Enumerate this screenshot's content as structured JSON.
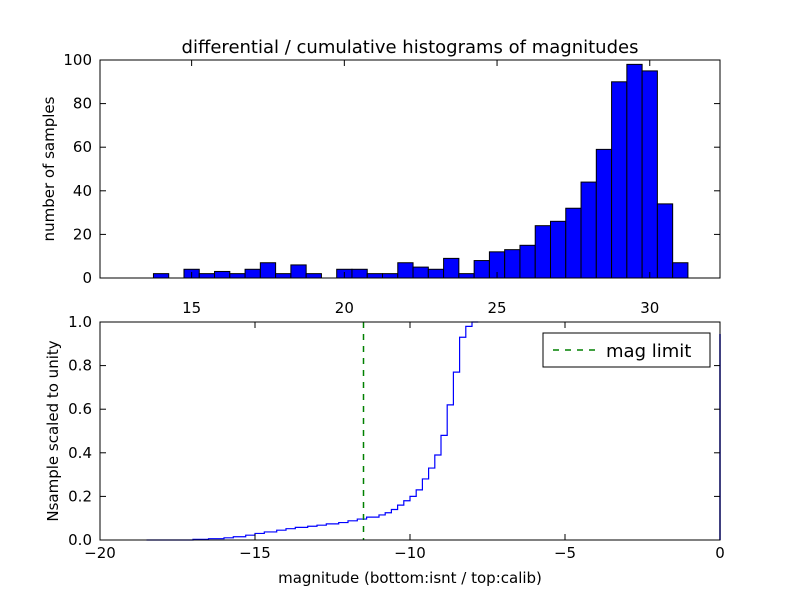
{
  "chart_data": [
    {
      "type": "bar",
      "title": "differential / cumulative histograms of magnitudes",
      "xlabel": "",
      "ylabel": "number of samples",
      "xlim": [
        12.0,
        32.3
      ],
      "ylim": [
        0,
        100
      ],
      "xticks": [
        15,
        20,
        25,
        30
      ],
      "yticks": [
        0,
        20,
        40,
        60,
        80,
        100
      ],
      "bar_color": "#0000ff",
      "edge_color": "#000000",
      "bin_width": 0.5,
      "bins": [
        {
          "left": 13.75,
          "value": 2
        },
        {
          "left": 14.25,
          "value": 0
        },
        {
          "left": 14.75,
          "value": 4
        },
        {
          "left": 15.25,
          "value": 2
        },
        {
          "left": 15.75,
          "value": 3
        },
        {
          "left": 16.25,
          "value": 2
        },
        {
          "left": 16.75,
          "value": 4
        },
        {
          "left": 17.25,
          "value": 7
        },
        {
          "left": 17.75,
          "value": 2
        },
        {
          "left": 18.25,
          "value": 6
        },
        {
          "left": 18.75,
          "value": 2
        },
        {
          "left": 19.25,
          "value": 0
        },
        {
          "left": 19.75,
          "value": 4
        },
        {
          "left": 20.25,
          "value": 4
        },
        {
          "left": 20.75,
          "value": 2
        },
        {
          "left": 21.25,
          "value": 2
        },
        {
          "left": 21.75,
          "value": 7
        },
        {
          "left": 22.25,
          "value": 5
        },
        {
          "left": 22.75,
          "value": 4
        },
        {
          "left": 23.25,
          "value": 9
        },
        {
          "left": 23.75,
          "value": 2
        },
        {
          "left": 24.25,
          "value": 8
        },
        {
          "left": 24.75,
          "value": 12
        },
        {
          "left": 25.25,
          "value": 13
        },
        {
          "left": 25.75,
          "value": 15
        },
        {
          "left": 26.25,
          "value": 24
        },
        {
          "left": 26.75,
          "value": 26
        },
        {
          "left": 27.25,
          "value": 32
        },
        {
          "left": 27.75,
          "value": 44
        },
        {
          "left": 28.25,
          "value": 59
        },
        {
          "left": 28.75,
          "value": 90
        },
        {
          "left": 29.25,
          "value": 98
        },
        {
          "left": 29.75,
          "value": 95
        },
        {
          "left": 30.25,
          "value": 34
        },
        {
          "left": 30.75,
          "value": 7
        }
      ]
    },
    {
      "type": "line",
      "xlabel": "magnitude (bottom:isnt / top:calib)",
      "ylabel": "Nsample scaled to unity",
      "xlim": [
        -20,
        0
      ],
      "ylim": [
        0.0,
        1.0
      ],
      "xticks": [
        -20,
        -15,
        -10,
        -5,
        0
      ],
      "xtick_labels": [
        "−20",
        "−15",
        "−10",
        "−5",
        "0"
      ],
      "yticks": [
        0.0,
        0.2,
        0.4,
        0.6,
        0.8,
        1.0
      ],
      "ytick_labels": [
        "0.0",
        "0.2",
        "0.4",
        "0.6",
        "0.8",
        "1.0"
      ],
      "legend": {
        "placement": "top-right"
      },
      "series": [
        {
          "kind": "step",
          "color": "#0000ff",
          "x": [
            -18.5,
            -17.0,
            -16.5,
            -16.0,
            -15.7,
            -15.3,
            -15.0,
            -14.7,
            -14.3,
            -14.0,
            -13.7,
            -13.3,
            -13.0,
            -12.7,
            -12.3,
            -12.0,
            -11.7,
            -11.4,
            -11.0,
            -10.8,
            -10.6,
            -10.4,
            -10.2,
            -10.0,
            -9.8,
            -9.6,
            -9.4,
            -9.2,
            -9.0,
            -8.8,
            -8.6,
            -8.4,
            -8.2,
            -8.0,
            -7.8
          ],
          "y": [
            0.0,
            0.003,
            0.006,
            0.01,
            0.015,
            0.022,
            0.03,
            0.037,
            0.045,
            0.052,
            0.058,
            0.063,
            0.068,
            0.074,
            0.08,
            0.088,
            0.096,
            0.105,
            0.115,
            0.125,
            0.14,
            0.16,
            0.18,
            0.2,
            0.23,
            0.28,
            0.33,
            0.39,
            0.48,
            0.62,
            0.77,
            0.93,
            0.98,
            1.0,
            1.0
          ]
        },
        {
          "name": "mag limit",
          "kind": "vline",
          "color": "#008000",
          "dash": true,
          "x": -11.5
        }
      ]
    }
  ]
}
